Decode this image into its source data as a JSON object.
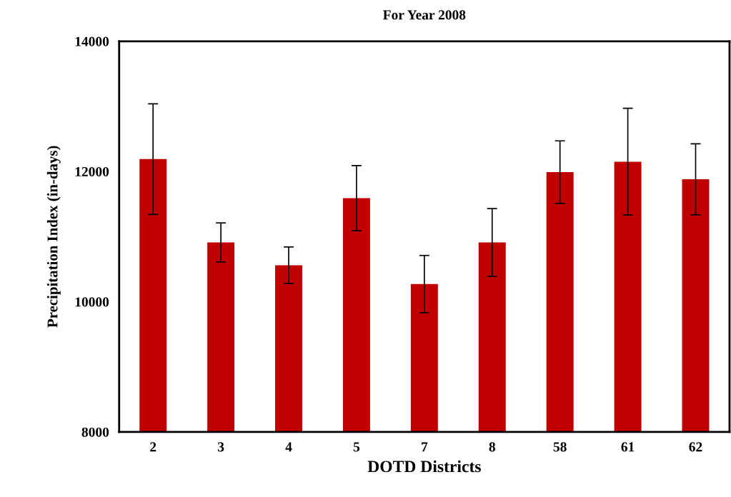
{
  "chart_data": {
    "type": "bar",
    "title": "For Year 2008",
    "xlabel": "DOTD Districts",
    "ylabel": "Precipitation Index (in-days)",
    "categories": [
      "2",
      "3",
      "4",
      "5",
      "7",
      "8",
      "58",
      "61",
      "62"
    ],
    "values": [
      12190,
      10910,
      10560,
      11590,
      10270,
      10910,
      11990,
      12150,
      11880
    ],
    "errors": [
      850,
      300,
      280,
      500,
      440,
      520,
      480,
      820,
      545
    ],
    "color": "#c00000",
    "ylim": [
      8000,
      14000
    ],
    "yticks": [
      8000,
      10000,
      12000,
      14000
    ],
    "grid": false,
    "legend": false
  }
}
